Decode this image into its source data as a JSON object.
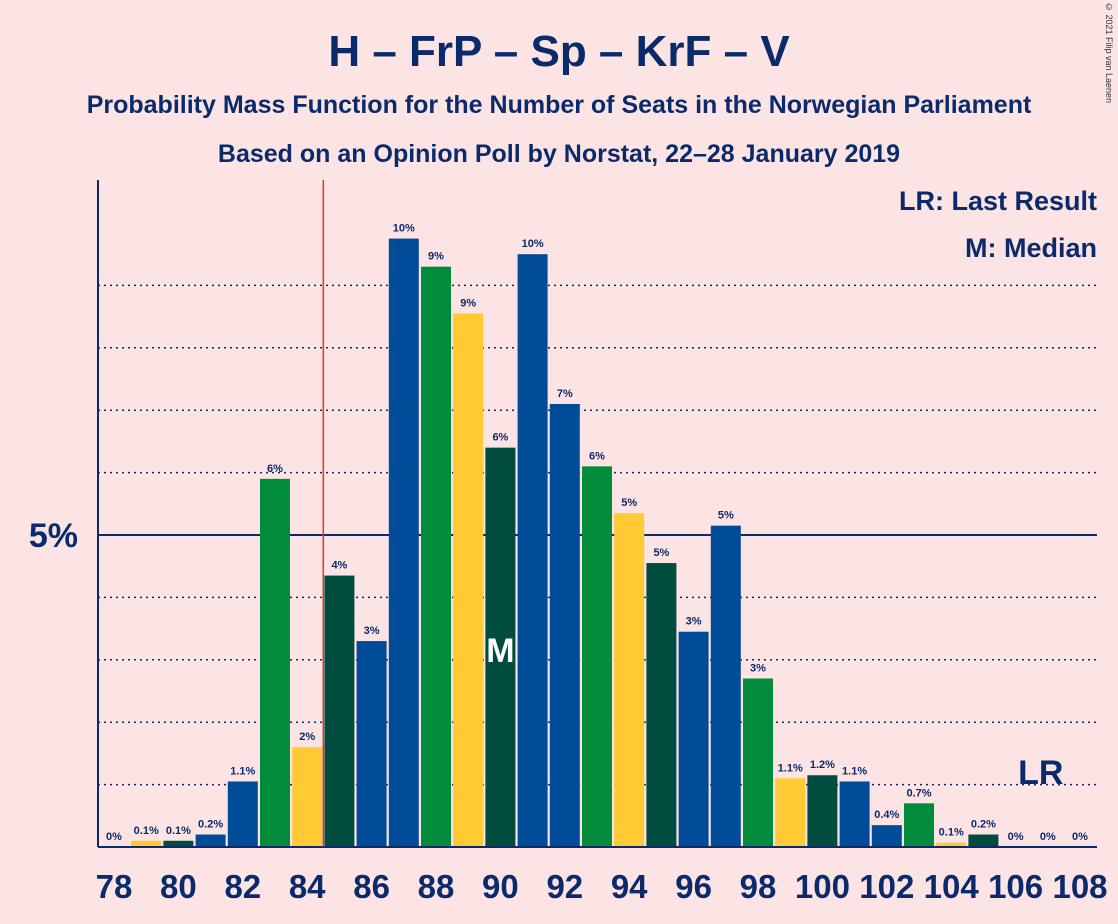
{
  "header": {
    "title": "H – FrP – Sp – KrF – V",
    "subtitle": "Probability Mass Function for the Number of Seats in the Norwegian Parliament",
    "subtitle2": "Based on an Opinion Poll by Norstat, 22–28 January 2019",
    "copyright": "© 2021 Filip van Laenen"
  },
  "legend": {
    "last_result": "LR: Last Result",
    "median": "M: Median",
    "position": "top-right"
  },
  "chart_data": {
    "type": "bar",
    "x": [
      78,
      79,
      80,
      81,
      82,
      83,
      84,
      85,
      86,
      87,
      88,
      89,
      90,
      91,
      92,
      93,
      94,
      95,
      96,
      97,
      98,
      99,
      100,
      101,
      102,
      103,
      104,
      105,
      106,
      107,
      108
    ],
    "values": [
      0.0,
      0.1,
      0.1,
      0.2,
      1.05,
      5.9,
      1.6,
      4.35,
      3.3,
      9.75,
      9.3,
      8.55,
      6.4,
      9.5,
      7.1,
      6.1,
      5.35,
      4.55,
      3.45,
      5.15,
      2.7,
      1.1,
      1.15,
      1.05,
      0.35,
      0.7,
      0.07,
      0.2,
      0.0,
      0.0,
      0.0
    ],
    "labels": [
      "0%",
      "0.1%",
      "0.1%",
      "0.2%",
      "1.1%",
      "6%",
      "2%",
      "4%",
      "3%",
      "10%",
      "9%",
      "9%",
      "6%",
      "10%",
      "7%",
      "6%",
      "5%",
      "5%",
      "3%",
      "5%",
      "3%",
      "1.1%",
      "1.2%",
      "1.1%",
      "0.4%",
      "0.7%",
      "0.1%",
      "0.2%",
      "0%",
      "0%",
      "0%"
    ],
    "xticks": [
      78,
      80,
      82,
      84,
      86,
      88,
      90,
      92,
      94,
      96,
      98,
      100,
      102,
      104,
      106,
      108
    ],
    "ytick_label": "5%",
    "ytick_value": 5,
    "ylim": [
      0,
      10.5
    ],
    "grid_values": [
      1,
      2,
      3,
      4,
      6,
      7,
      8,
      9
    ],
    "majority_line_seat": 84.5,
    "median_seat": 90,
    "median_marker": "M",
    "last_result_seat": 107,
    "last_result_marker": "LR",
    "colors": {
      "green": "#008c3a",
      "yellow": "#ffca33",
      "dark": "#004d3f",
      "blue": "#004c99",
      "majority_line": "#e8302a",
      "axis": "#0a2a6c"
    },
    "color_cycle": [
      "green",
      "yellow",
      "dark",
      "blue",
      "blue"
    ]
  }
}
